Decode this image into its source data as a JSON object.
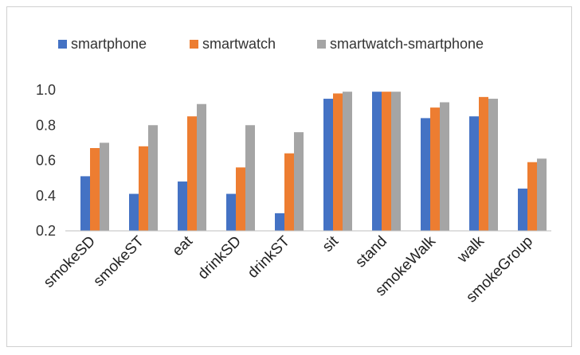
{
  "chart_data": {
    "type": "bar",
    "categories": [
      "smokeSD",
      "smokeST",
      "eat",
      "drinkSD",
      "drinkST",
      "sit",
      "stand",
      "smokeWalk",
      "walk",
      "smokeGroup"
    ],
    "series": [
      {
        "name": "smartphone",
        "color": "#4472C4",
        "values": [
          0.51,
          0.41,
          0.48,
          0.41,
          0.3,
          0.95,
          0.99,
          0.84,
          0.85,
          0.44
        ]
      },
      {
        "name": "smartwatch",
        "color": "#ED7D31",
        "values": [
          0.67,
          0.68,
          0.85,
          0.56,
          0.64,
          0.98,
          0.99,
          0.9,
          0.96,
          0.59
        ]
      },
      {
        "name": "smartwatch-smartphone",
        "color": "#A5A5A5",
        "values": [
          0.7,
          0.8,
          0.92,
          0.8,
          0.76,
          0.99,
          0.99,
          0.93,
          0.95,
          0.61
        ]
      }
    ],
    "yticks": [
      "0.2",
      "0.4",
      "0.6",
      "0.8",
      "1.0"
    ],
    "ylim": [
      0.2,
      1.0
    ],
    "grid": false,
    "legend_position": "top"
  }
}
